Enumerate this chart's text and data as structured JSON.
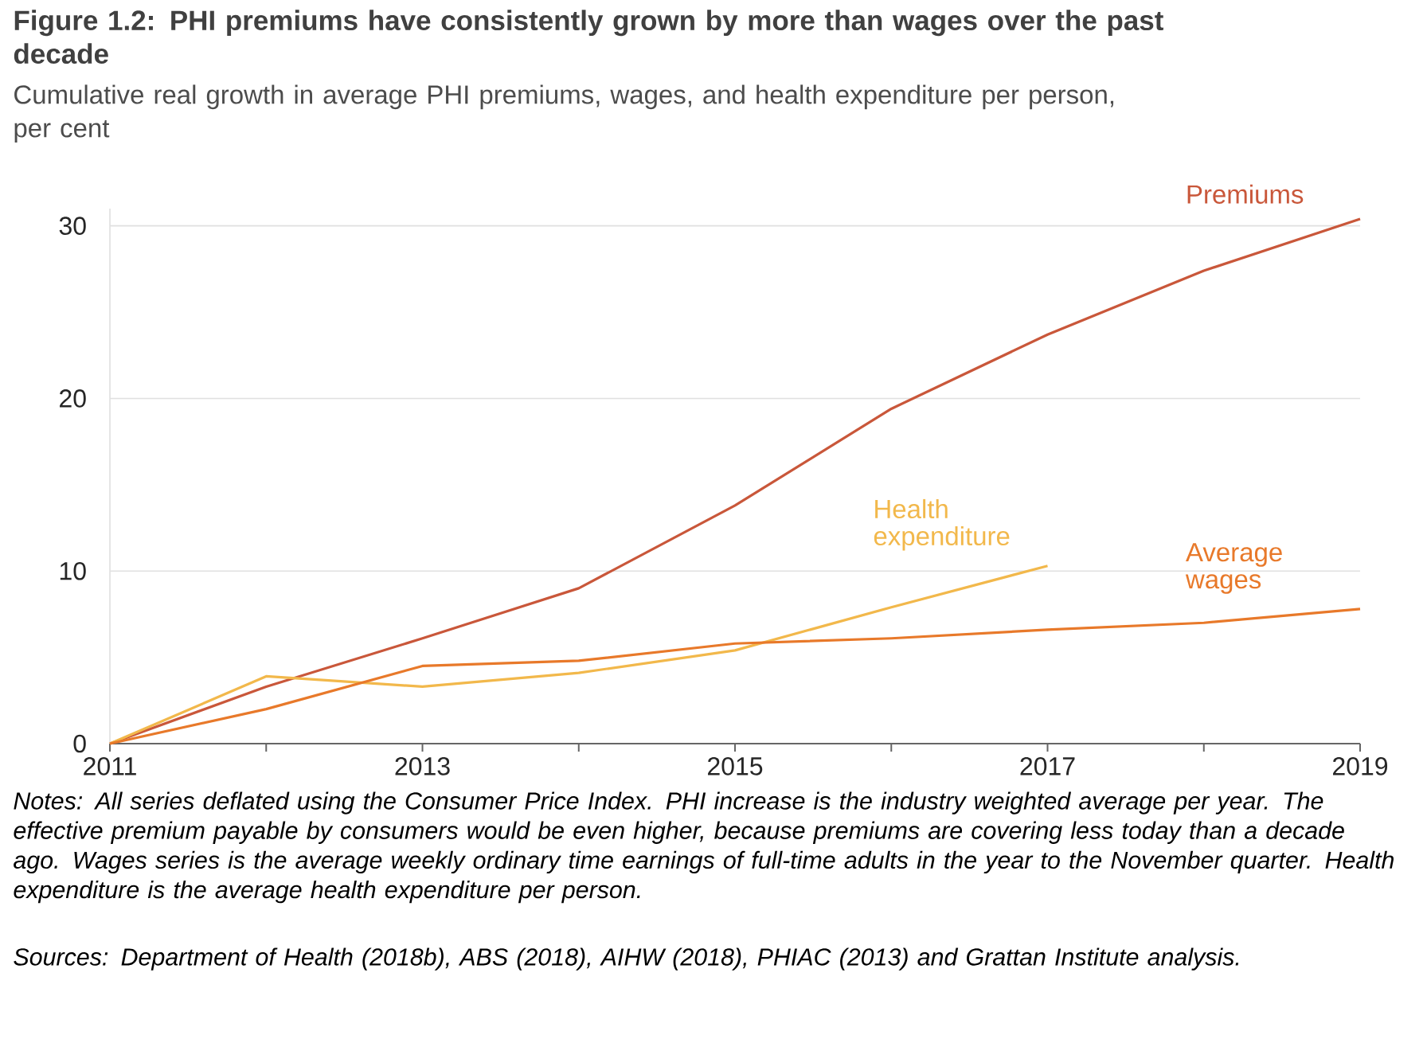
{
  "chart_data": {
    "type": "line",
    "title": "Figure 1.2: PHI premiums have consistently grown by more than wages over the past decade",
    "subtitle": "Cumulative real growth in average PHI premiums, wages, and health expenditure per person, per cent",
    "x": [
      2011,
      2012,
      2013,
      2014,
      2015,
      2016,
      2017,
      2018,
      2019
    ],
    "series": [
      {
        "name": "Premiums",
        "color": "#c9573a",
        "values": [
          0,
          3.3,
          6.1,
          9.0,
          13.8,
          19.4,
          23.7,
          27.4,
          30.4
        ]
      },
      {
        "name": "Health expenditure",
        "color": "#f2b84b",
        "values": [
          0,
          3.9,
          3.3,
          4.1,
          5.4,
          7.9,
          10.3,
          null,
          null
        ]
      },
      {
        "name": "Average wages",
        "color": "#e8792a",
        "values": [
          0,
          2.0,
          4.5,
          4.8,
          5.8,
          6.1,
          6.6,
          7.0,
          7.8
        ]
      }
    ],
    "xlim": [
      2011,
      2019
    ],
    "xticks": [
      2011,
      {
        "value": 2012,
        "label": null
      },
      2013,
      {
        "value": 2014,
        "label": null
      },
      2015,
      {
        "value": 2016,
        "label": null
      },
      2017,
      {
        "value": 2018,
        "label": null
      },
      2019
    ],
    "ylim": [
      0,
      31
    ],
    "yticks": [
      0,
      10,
      20,
      30
    ],
    "grid": "y",
    "annotations": [
      "Notes: All series deflated using the Consumer Price Index. PHI increase is the industry weighted average per year. The effective premium payable by consumers would be even higher, because premiums are covering less today than a decade ago. Wages series is the average weekly ordinary time earnings of full-time adults in the year to the November quarter. Health expenditure is the average health expenditure per person.",
      "Sources: Department of Health (2018b), ABS (2018), AIHW (2018), PHIAC (2013) and Grattan Institute analysis."
    ]
  }
}
